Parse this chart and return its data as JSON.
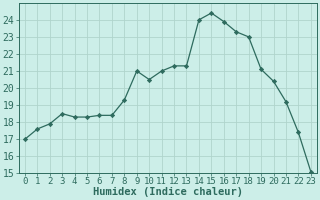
{
  "x": [
    0,
    1,
    2,
    3,
    4,
    5,
    6,
    7,
    8,
    9,
    10,
    11,
    12,
    13,
    14,
    15,
    16,
    17,
    18,
    19,
    20,
    21,
    22,
    23
  ],
  "y": [
    17.0,
    17.6,
    17.9,
    18.5,
    18.3,
    18.3,
    18.4,
    18.4,
    19.3,
    21.0,
    20.5,
    21.0,
    21.3,
    21.3,
    24.0,
    24.4,
    23.9,
    23.3,
    23.0,
    21.1,
    20.4,
    19.2,
    17.4,
    15.1
  ],
  "line_color": "#2e6b5e",
  "marker": "D",
  "marker_size": 2.2,
  "bg_color": "#cceee8",
  "grid_color": "#b0d4cc",
  "xlabel": "Humidex (Indice chaleur)",
  "ylim": [
    15,
    25
  ],
  "xlim": [
    -0.5,
    23.5
  ],
  "yticks": [
    15,
    16,
    17,
    18,
    19,
    20,
    21,
    22,
    23,
    24
  ],
  "xticks": [
    0,
    1,
    2,
    3,
    4,
    5,
    6,
    7,
    8,
    9,
    10,
    11,
    12,
    13,
    14,
    15,
    16,
    17,
    18,
    19,
    20,
    21,
    22,
    23
  ],
  "tick_fontsize": 6.5,
  "xlabel_fontsize": 7.5,
  "ytick_fontsize": 7
}
